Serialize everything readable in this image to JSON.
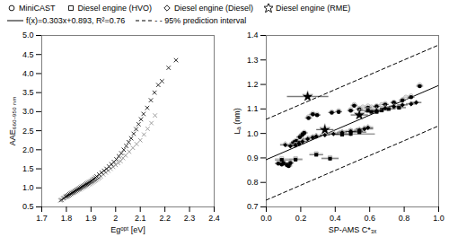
{
  "chart_data": [
    {
      "type": "scatter",
      "xlabel": "Egᵒᵖᵗ [eV]",
      "ylabel": "AAE₆₆₀₋₉₅₀ ₙₘ",
      "xlim": [
        1.7,
        2.4
      ],
      "ylim": [
        0.5,
        5
      ],
      "xticks": [
        1.7,
        1.8,
        1.9,
        2,
        2.1,
        2.2,
        2.3,
        2.4
      ],
      "yticks": [
        0.5,
        {
          "value": 1,
          "label": "1.0"
        },
        1.5,
        {
          "value": 2,
          "label": "2.0"
        },
        2.5,
        {
          "value": 3,
          "label": "3.0"
        },
        3.5,
        {
          "value": 4,
          "label": "4.0"
        },
        4.5,
        {
          "value": 5,
          "label": "5.0"
        }
      ],
      "grid": false,
      "series": [
        {
          "type": "scatter",
          "color": "#888888",
          "marker": "x",
          "x": [
            1.775,
            1.785,
            1.795,
            1.8,
            1.805,
            1.81,
            1.815,
            1.82,
            1.825,
            1.83,
            1.835,
            1.84,
            1.845,
            1.85,
            1.855,
            1.86,
            1.865,
            1.87,
            1.875,
            1.88,
            1.885,
            1.89,
            1.895,
            1.9,
            1.905,
            1.91,
            1.915,
            1.92,
            1.925,
            1.93,
            1.935,
            1.94,
            1.95,
            1.96,
            1.97,
            1.98,
            1.99,
            2,
            2.01,
            2.02,
            2.03,
            2.04,
            2.055,
            2.07,
            2.085,
            2.1,
            2.115,
            2.13,
            2.145,
            2.16
          ],
          "values": [
            0.67,
            0.72,
            0.75,
            0.77,
            0.78,
            0.8,
            0.82,
            0.84,
            0.86,
            0.87,
            0.89,
            0.91,
            0.93,
            0.95,
            0.96,
            0.98,
            1,
            1.02,
            1.03,
            1.05,
            1.07,
            1.09,
            1.1,
            1.12,
            1.14,
            1.16,
            1.18,
            1.2,
            1.22,
            1.25,
            1.27,
            1.3,
            1.35,
            1.4,
            1.45,
            1.5,
            1.55,
            1.6,
            1.65,
            1.7,
            1.78,
            1.85,
            1.95,
            2.05,
            2.15,
            2.25,
            2.4,
            2.55,
            2.7,
            2.9
          ]
        },
        {
          "type": "scatter",
          "color": "black",
          "marker": "x",
          "x": [
            1.78,
            1.79,
            1.798,
            1.803,
            1.808,
            1.813,
            1.818,
            1.823,
            1.828,
            1.833,
            1.838,
            1.843,
            1.848,
            1.853,
            1.858,
            1.863,
            1.868,
            1.873,
            1.878,
            1.883,
            1.888,
            1.893,
            1.898,
            1.903,
            1.908,
            1.913,
            1.918,
            1.923,
            1.933,
            1.943,
            1.953,
            1.963,
            1.973,
            1.983,
            1.993,
            2.003,
            2.013,
            2.023,
            2.033,
            2.043,
            2.053,
            2.063,
            2.073,
            2.083,
            2.093,
            2.103,
            2.113,
            2.128,
            2.143,
            2.158,
            2.173,
            2.188,
            2.215,
            2.245
          ],
          "values": [
            0.68,
            0.73,
            0.77,
            0.79,
            0.81,
            0.83,
            0.85,
            0.87,
            0.89,
            0.91,
            0.93,
            0.95,
            0.97,
            0.99,
            1.01,
            1.03,
            1.05,
            1.07,
            1.09,
            1.11,
            1.13,
            1.15,
            1.17,
            1.19,
            1.22,
            1.24,
            1.27,
            1.3,
            1.35,
            1.4,
            1.45,
            1.5,
            1.56,
            1.62,
            1.68,
            1.75,
            1.83,
            1.91,
            2,
            2.1,
            2.2,
            2.3,
            2.42,
            2.54,
            2.67,
            2.8,
            2.94,
            3.1,
            3.3,
            3.5,
            3.7,
            3.8,
            4.15,
            4.35
          ]
        }
      ]
    },
    {
      "type": "scatter",
      "xlabel": "SP-AMS C*₃ₓ",
      "ylabel": "Lₐ (nm)",
      "xlim": [
        0,
        1
      ],
      "ylim": [
        0.7,
        1.4
      ],
      "xticks": [
        {
          "value": 0,
          "label": "0.0"
        },
        0.2,
        0.4,
        0.6,
        0.8,
        {
          "value": 1,
          "label": "1.0"
        }
      ],
      "yticks": [
        0.7,
        0.8,
        0.9,
        {
          "value": 1,
          "label": "1.0"
        },
        1.1,
        1.2,
        1.3,
        1.4
      ],
      "grid": false,
      "legend": "top",
      "series": [
        {
          "name": "MiniCAST",
          "type": "scatter",
          "color": "#aaaaaa",
          "marker": "circle-open",
          "x": [
            0.07,
            0.09,
            0.1,
            0.12,
            0.13,
            0.14,
            0.155,
            0.165,
            0.175,
            0.185,
            0.195,
            0.21,
            0.22,
            0.245,
            0.27,
            0.295,
            0.38,
            0.42,
            0.49,
            0.51,
            0.54,
            0.56,
            0.59,
            0.61,
            0.64,
            0.67,
            0.69,
            0.74,
            0.79,
            0.81,
            0.84,
            0.89
          ],
          "values": [
            0.88,
            0.876,
            0.882,
            0.874,
            0.87,
            0.882,
            0.962,
            0.968,
            0.972,
            0.966,
            0.988,
            0.998,
            1.005,
            1.068,
            1.082,
            1.078,
            1.088,
            1.093,
            1.098,
            1.118,
            1.103,
            1.108,
            1.112,
            1.108,
            1.113,
            1.118,
            1.122,
            1.128,
            1.138,
            1.148,
            1.153,
            1.198
          ],
          "xerr": [
            0.02,
            0.02,
            0.02,
            0.02,
            0.02,
            0.02,
            0.02,
            0.02,
            0.02,
            0.02,
            0.02,
            0.02,
            0.02,
            0.02,
            0.02,
            0.02,
            0.02,
            0.02,
            0.02,
            0.02,
            0.02,
            0.02,
            0.02,
            0.02,
            0.02,
            0.02,
            0.02,
            0.02,
            0.02,
            0.02,
            0.02,
            0.02
          ],
          "yerr": [
            0.005,
            0.005,
            0.005,
            0.005,
            0.005,
            0.005,
            0.005,
            0.005,
            0.005,
            0.005,
            0.005,
            0.005,
            0.005,
            0.005,
            0.005,
            0.005,
            0.005,
            0.005,
            0.005,
            0.005,
            0.005,
            0.005,
            0.005,
            0.005,
            0.005,
            0.005,
            0.005,
            0.005,
            0.005,
            0.005,
            0.005,
            0.005
          ]
        },
        {
          "name": "MiniCAST",
          "type": "scatter",
          "color": "black",
          "marker": "circle",
          "x": [
            0.07,
            0.09,
            0.1,
            0.12,
            0.13,
            0.14,
            0.155,
            0.165,
            0.175,
            0.185,
            0.195,
            0.21,
            0.22,
            0.245,
            0.27,
            0.295,
            0.38,
            0.42,
            0.49,
            0.51,
            0.54,
            0.59,
            0.64,
            0.69,
            0.74,
            0.79,
            0.84,
            0.89
          ],
          "values": [
            0.877,
            0.873,
            0.879,
            0.871,
            0.867,
            0.879,
            0.959,
            0.965,
            0.969,
            0.963,
            0.985,
            0.995,
            1.002,
            1.063,
            1.078,
            1.075,
            1.085,
            1.088,
            1.093,
            1.113,
            1.098,
            1.105,
            1.11,
            1.118,
            1.126,
            1.135,
            1.148,
            1.193
          ],
          "xerr": [
            0.02,
            0.02,
            0.02,
            0.02,
            0.02,
            0.02,
            0.02,
            0.02,
            0.02,
            0.02,
            0.02,
            0.02,
            0.02,
            0.02,
            0.02,
            0.02,
            0.02,
            0.02,
            0.02,
            0.02,
            0.02,
            0.02,
            0.02,
            0.02,
            0.02,
            0.02,
            0.02,
            0.02
          ],
          "yerr": [
            0.005,
            0.005,
            0.005,
            0.005,
            0.005,
            0.005,
            0.005,
            0.005,
            0.005,
            0.005,
            0.005,
            0.005,
            0.005,
            0.005,
            0.005,
            0.005,
            0.005,
            0.005,
            0.005,
            0.005,
            0.005,
            0.005,
            0.005,
            0.005,
            0.005,
            0.005,
            0.005,
            0.005
          ]
        },
        {
          "name": "Diesel engine (HVO)",
          "type": "scatter",
          "color": "#aaaaaa",
          "marker": "square-open",
          "x": [
            0.09,
            0.17,
            0.29,
            0.37,
            0.44,
            0.49,
            0.54,
            0.59,
            0.61,
            0.64,
            0.67,
            0.71,
            0.77
          ],
          "values": [
            0.897,
            0.898,
            0.918,
            0.902,
            0.998,
            1.012,
            1.008,
            1.098,
            1.093,
            1.093,
            1.098,
            1.103,
            1.108
          ],
          "xerr": [
            0.04,
            0.04,
            0.04,
            0.05,
            0.04,
            0.07,
            0.04,
            0.05,
            0.04,
            0.04,
            0.04,
            0.04,
            0.04
          ],
          "yerr": [
            0.006,
            0.006,
            0.006,
            0.006,
            0.006,
            0.006,
            0.006,
            0.006,
            0.006,
            0.006,
            0.006,
            0.006,
            0.006
          ]
        },
        {
          "name": "Diesel engine (HVO)",
          "type": "scatter",
          "color": "black",
          "marker": "square",
          "x": [
            0.09,
            0.17,
            0.29,
            0.37,
            0.44,
            0.49,
            0.49,
            0.54,
            0.59,
            0.61,
            0.64,
            0.67,
            0.71,
            0.77
          ],
          "values": [
            0.892,
            0.893,
            0.913,
            0.897,
            0.995,
            1.008,
            0.998,
            1.005,
            1.093,
            1.088,
            1.088,
            1.095,
            1.1,
            1.105
          ],
          "xerr": [
            0.04,
            0.04,
            0.04,
            0.05,
            0.04,
            0.07,
            0.14,
            0.04,
            0.05,
            0.04,
            0.04,
            0.04,
            0.04,
            0.04
          ],
          "yerr": [
            0.006,
            0.006,
            0.006,
            0.006,
            0.006,
            0.006,
            0.008,
            0.006,
            0.006,
            0.006,
            0.006,
            0.006,
            0.006,
            0.006
          ]
        },
        {
          "name": "Diesel engine (Diesel)",
          "type": "scatter",
          "color": "#aaaaaa",
          "marker": "diamond-open",
          "x": [
            0.11,
            0.14,
            0.17,
            0.19,
            0.21,
            0.24,
            0.27,
            0.29,
            0.34,
            0.39,
            0.44,
            0.49,
            0.54,
            0.57,
            0.59,
            0.64,
            0.69,
            0.74,
            0.79,
            0.84,
            0.87
          ],
          "values": [
            0.958,
            0.953,
            0.956,
            0.963,
            0.972,
            0.982,
            0.988,
            0.993,
            0.998,
            1.003,
            1.008,
            1.013,
            1.018,
            1.023,
            1.028,
            1.098,
            1.108,
            1.113,
            1.118,
            1.123,
            1.128
          ],
          "xerr": [
            0.03,
            0.03,
            0.03,
            0.03,
            0.03,
            0.03,
            0.03,
            0.03,
            0.03,
            0.03,
            0.03,
            0.03,
            0.03,
            0.05,
            0.03,
            0.03,
            0.03,
            0.03,
            0.03,
            0.03,
            0.03
          ],
          "yerr": [
            0.006,
            0.006,
            0.006,
            0.006,
            0.006,
            0.006,
            0.006,
            0.006,
            0.006,
            0.006,
            0.006,
            0.006,
            0.006,
            0.006,
            0.006,
            0.006,
            0.006,
            0.006,
            0.006,
            0.006,
            0.006
          ]
        },
        {
          "name": "Diesel engine (Diesel)",
          "type": "scatter",
          "color": "black",
          "marker": "diamond",
          "x": [
            0.11,
            0.14,
            0.17,
            0.19,
            0.21,
            0.24,
            0.27,
            0.29,
            0.34,
            0.39,
            0.44,
            0.49,
            0.54,
            0.57,
            0.59,
            0.64,
            0.69,
            0.74,
            0.79,
            0.84,
            0.87
          ],
          "values": [
            0.953,
            0.948,
            0.951,
            0.958,
            0.967,
            0.977,
            0.983,
            0.988,
            0.993,
            0.998,
            1.003,
            1.008,
            1.013,
            1.018,
            1.023,
            1.093,
            1.103,
            1.11,
            1.116,
            1.12,
            1.126
          ],
          "xerr": [
            0.03,
            0.03,
            0.03,
            0.03,
            0.03,
            0.03,
            0.03,
            0.03,
            0.03,
            0.03,
            0.03,
            0.03,
            0.03,
            0.05,
            0.03,
            0.03,
            0.03,
            0.03,
            0.03,
            0.03,
            0.03
          ],
          "yerr": [
            0.006,
            0.006,
            0.006,
            0.006,
            0.006,
            0.006,
            0.006,
            0.006,
            0.006,
            0.006,
            0.006,
            0.006,
            0.006,
            0.006,
            0.006,
            0.006,
            0.006,
            0.006,
            0.006,
            0.006,
            0.006
          ]
        },
        {
          "name": "Diesel engine (RME)",
          "type": "scatter",
          "color": "#aaaaaa",
          "marker": "star-open",
          "x": [
            0.24,
            0.34,
            0.54
          ],
          "values": [
            1.153,
            1.018,
            1.078
          ],
          "xerr": [
            0.12,
            0.05,
            0.05
          ],
          "yerr": [
            0.008,
            0.008,
            0.008
          ]
        },
        {
          "name": "Diesel engine (RME)",
          "type": "scatter",
          "color": "black",
          "marker": "star",
          "x": [
            0.24,
            0.34,
            0.54
          ],
          "values": [
            1.15,
            1.015,
            1.075
          ],
          "xerr": [
            0.12,
            0.05,
            0.05
          ],
          "yerr": [
            0.008,
            0.008,
            0.008
          ]
        },
        {
          "name": "f(x)=0.303x+0.893, R²=0.76",
          "type": "line",
          "color": "black",
          "line_style": "solid",
          "x": [
            0,
            1
          ],
          "values": [
            0.893,
            1.196
          ]
        },
        {
          "name": "- - 95% prediction interval",
          "type": "line",
          "color": "black",
          "line_style": "dashed",
          "x": [
            0,
            1
          ],
          "values": [
            1.058,
            1.361
          ]
        },
        {
          "name": "- - 95% prediction interval",
          "type": "line",
          "color": "black",
          "line_style": "dashed",
          "x": [
            0,
            1
          ],
          "values": [
            0.728,
            1.031
          ]
        }
      ]
    }
  ]
}
